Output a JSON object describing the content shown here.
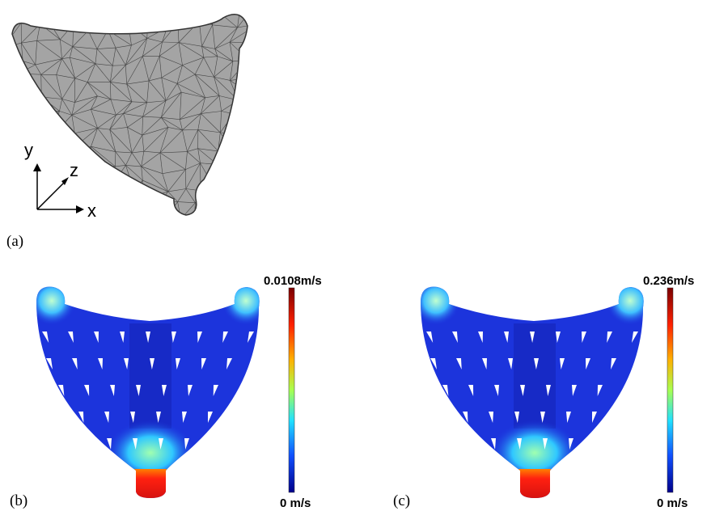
{
  "panels": [
    {
      "label": "(a)",
      "axes": {
        "y": "y",
        "z": "z",
        "x": "x"
      }
    },
    {
      "label": "(b)",
      "colorbar": {
        "max": "0.0108m/s",
        "min": "0 m/s"
      }
    },
    {
      "label": "(c)",
      "colorbar": {
        "max": "0.236m/s",
        "min": "0 m/s"
      }
    }
  ]
}
